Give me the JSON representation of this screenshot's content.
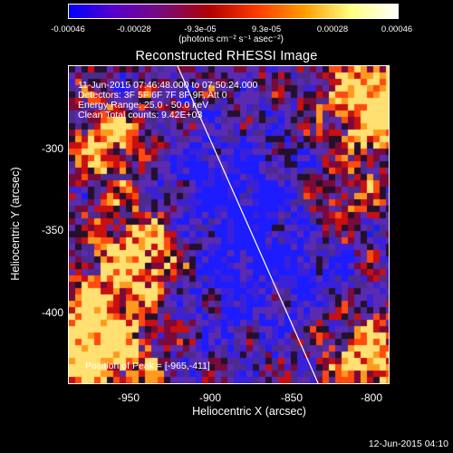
{
  "colorbar": {
    "ticks": [
      "-0.00046",
      "-0.00028",
      "-9.3e-05",
      "9.3e-05",
      "0.00028",
      "0.00046"
    ],
    "units": "(photons cm⁻² s⁻¹ asec⁻²)",
    "colors": [
      "#0000ff",
      "#5a00c8",
      "#7a0a78",
      "#b00000",
      "#ff3a00",
      "#ff9a00",
      "#ffff80",
      "#ffffff"
    ]
  },
  "title": "Reconstructed RHESSI Image",
  "annotation": {
    "time_range": "11-Jun-2015 07:46:48.000 to 07:50:24.000",
    "detectors": "Detectors: 3F 5F 6F 7F 8F 9F, Att 0",
    "energy": "Energy Range: 25.0 - 50.0 keV",
    "method": "Clean    Total counts: 9.42E+03",
    "peak": "Position of Peak = [-965,-411]"
  },
  "axes": {
    "xlabel": "Heliocentric X (arcsec)",
    "ylabel": "Heliocentric Y (arcsec)",
    "xticks": [
      "-950",
      "-900",
      "-850",
      "-800"
    ],
    "yticks": [
      "-300",
      "-350",
      "-400"
    ]
  },
  "datestamp": "12-Jun-2015 04:10"
}
